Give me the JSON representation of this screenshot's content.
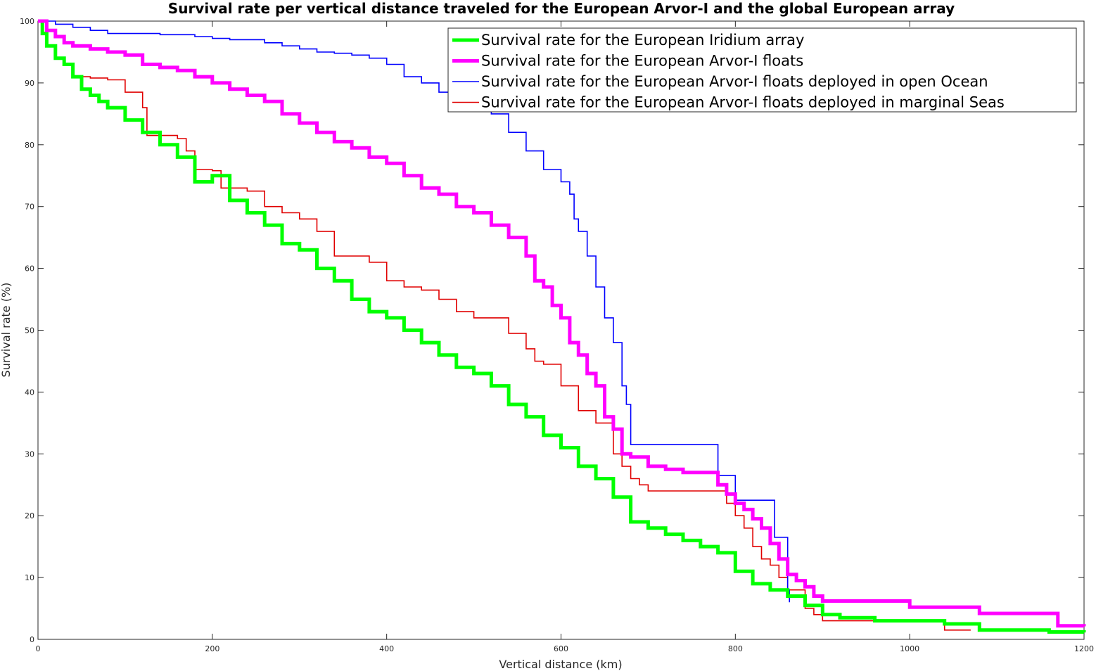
{
  "chart_data": {
    "type": "line",
    "title": "Survival rate per vertical distance traveled for the European Arvor-I and the global European array",
    "xlabel": "Vertical distance (km)",
    "ylabel": "Survival rate (%)",
    "xlim": [
      0,
      1200
    ],
    "ylim": [
      0,
      100
    ],
    "xticks": [
      0,
      200,
      400,
      600,
      800,
      1000,
      1200
    ],
    "yticks": [
      0,
      10,
      20,
      30,
      40,
      50,
      60,
      70,
      80,
      90,
      100
    ],
    "grid": false,
    "legend_position": "top-right",
    "step": true,
    "series": [
      {
        "name": "Survival rate for the European Iridium array",
        "color": "#00ff00",
        "linewidth": "thick",
        "x": [
          0,
          5,
          10,
          20,
          30,
          40,
          50,
          60,
          70,
          80,
          100,
          120,
          140,
          160,
          180,
          200,
          220,
          240,
          260,
          280,
          300,
          320,
          340,
          360,
          380,
          400,
          420,
          440,
          460,
          480,
          500,
          520,
          540,
          560,
          580,
          600,
          620,
          640,
          660,
          680,
          700,
          720,
          740,
          760,
          780,
          800,
          820,
          840,
          860,
          880,
          900,
          920,
          960,
          1000,
          1040,
          1080,
          1120,
          1160,
          1200
        ],
        "y": [
          100,
          98,
          96,
          94,
          93,
          91,
          89,
          88,
          87,
          86,
          84,
          82,
          80,
          78,
          74,
          75,
          71,
          69,
          67,
          64,
          63,
          60,
          58,
          55,
          53,
          52,
          50,
          48,
          46,
          44,
          43,
          41,
          38,
          36,
          33,
          31,
          28,
          26,
          23,
          19,
          18,
          17,
          16,
          15,
          14,
          11,
          9,
          8,
          7,
          5.5,
          4,
          3.5,
          3,
          3,
          2.5,
          1.5,
          1.5,
          1.2,
          1.1
        ]
      },
      {
        "name": "Survival rate for the European Arvor-I floats",
        "color": "#ff00ff",
        "linewidth": "thick",
        "x": [
          0,
          10,
          20,
          30,
          40,
          60,
          80,
          100,
          120,
          140,
          160,
          180,
          200,
          220,
          240,
          260,
          280,
          300,
          320,
          340,
          360,
          380,
          400,
          420,
          440,
          460,
          480,
          500,
          520,
          540,
          560,
          570,
          580,
          590,
          600,
          610,
          620,
          630,
          640,
          650,
          660,
          670,
          680,
          700,
          720,
          740,
          760,
          780,
          790,
          800,
          810,
          820,
          830,
          840,
          850,
          860,
          870,
          880,
          890,
          900,
          940,
          980,
          1000,
          1040,
          1080,
          1120,
          1160,
          1170,
          1200
        ],
        "y": [
          100,
          98.5,
          97.5,
          96.5,
          96,
          95.5,
          95,
          94.5,
          93,
          92.5,
          92,
          91,
          90,
          89,
          88,
          87,
          85,
          83.5,
          82,
          80.5,
          79.5,
          78,
          77,
          75,
          73,
          72,
          70,
          69,
          67,
          65,
          62,
          58,
          57,
          54,
          52,
          48,
          46,
          43,
          41,
          36,
          34,
          30,
          29.5,
          28,
          27.5,
          27,
          27,
          25,
          23.5,
          22,
          21,
          19.5,
          18,
          15.5,
          13,
          10.5,
          9.5,
          8.5,
          7,
          6.2,
          6.2,
          6.2,
          5.2,
          5.2,
          4.2,
          4.2,
          4.2,
          2.2,
          2.1
        ]
      },
      {
        "name": "Survival rate for the European Arvor-I floats deployed in open Ocean",
        "color": "#0000ff",
        "linewidth": "thin",
        "x": [
          0,
          20,
          40,
          60,
          80,
          100,
          140,
          180,
          200,
          220,
          260,
          280,
          300,
          320,
          340,
          360,
          380,
          400,
          420,
          440,
          460,
          480,
          500,
          520,
          540,
          560,
          580,
          600,
          610,
          615,
          620,
          630,
          640,
          650,
          660,
          670,
          675,
          680,
          700,
          740,
          770,
          780,
          790,
          800,
          820,
          840,
          845,
          850,
          860,
          862
        ],
        "y": [
          100,
          99.5,
          99,
          98.5,
          98,
          98,
          97.8,
          97.5,
          97.2,
          97,
          96.5,
          96,
          95.5,
          95,
          94.8,
          94.5,
          94,
          93,
          91,
          90,
          88.5,
          88,
          86.5,
          85,
          82,
          79,
          76,
          74,
          72,
          68,
          66,
          62,
          57,
          52,
          48,
          41,
          38,
          31.5,
          31.5,
          31.5,
          31.5,
          26.5,
          26.5,
          22.5,
          22.5,
          22.5,
          16.5,
          16.5,
          8,
          6
        ]
      },
      {
        "name": "Survival rate for the European Arvor-I floats deployed in marginal Seas",
        "color": "#e00000",
        "linewidth": "thin",
        "x": [
          0,
          10,
          20,
          30,
          40,
          60,
          80,
          100,
          120,
          125,
          160,
          170,
          180,
          200,
          210,
          240,
          260,
          280,
          300,
          320,
          340,
          360,
          380,
          400,
          420,
          440,
          460,
          480,
          500,
          520,
          540,
          560,
          570,
          580,
          600,
          620,
          640,
          660,
          670,
          680,
          690,
          700,
          720,
          760,
          780,
          790,
          800,
          810,
          820,
          830,
          840,
          850,
          860,
          880,
          890,
          900,
          920,
          960,
          1000,
          1040,
          1070
        ],
        "y": [
          100,
          96,
          94,
          93,
          91,
          90.8,
          90.5,
          88.5,
          86,
          81.5,
          81,
          79,
          76,
          75.8,
          73,
          72.5,
          70,
          69,
          68,
          66,
          62,
          62,
          61,
          58,
          57,
          56.5,
          55,
          53,
          52,
          52,
          49.5,
          47,
          45,
          44.5,
          41,
          37,
          35,
          30,
          28,
          26,
          25,
          24,
          24,
          24,
          24,
          22,
          20,
          18,
          15,
          13,
          12,
          10,
          8,
          5,
          4,
          3,
          3,
          3,
          3,
          1.5,
          1.5
        ]
      }
    ]
  }
}
